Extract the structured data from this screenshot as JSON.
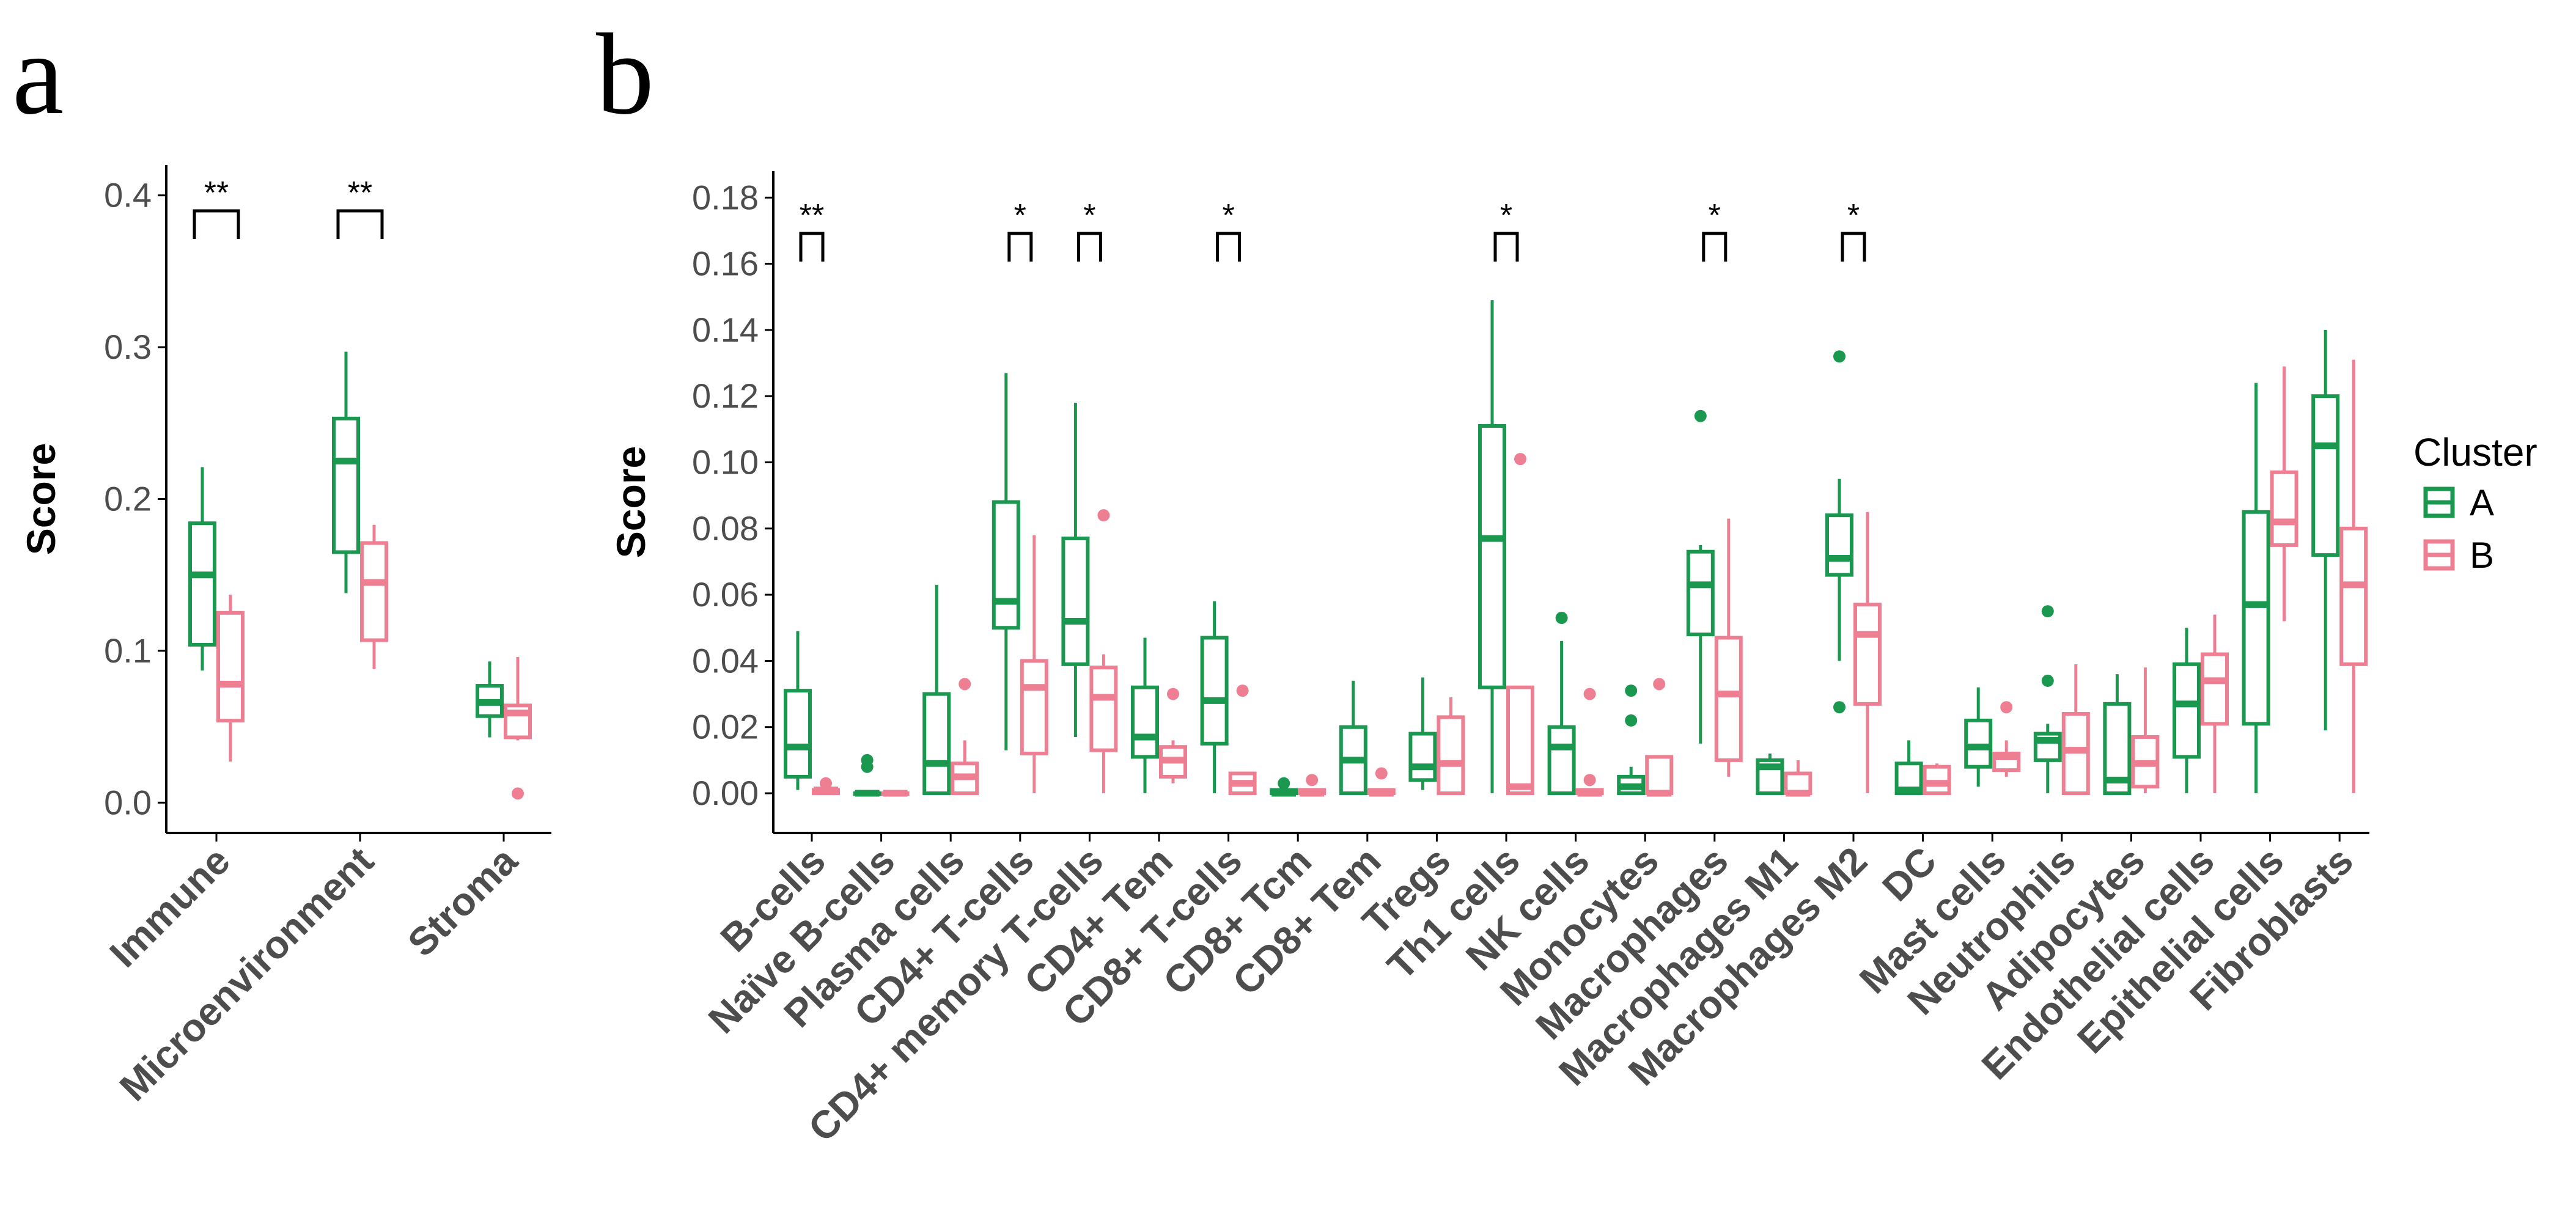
{
  "panel_labels": [
    "a",
    "b"
  ],
  "legend": {
    "title": "Cluster",
    "items": [
      {
        "label": "A",
        "color": "#1B9850"
      },
      {
        "label": "B",
        "color": "#EE7F93"
      }
    ]
  },
  "colors": {
    "A": "#1B9850",
    "B": "#EE7F93",
    "axis": "#000000",
    "tick_text": "#4d4d4d"
  },
  "chart_data": [
    {
      "type": "boxplot",
      "panel": "a",
      "ylabel": "Score",
      "xlabel": "",
      "ylim": [
        -0.02,
        0.42
      ],
      "yticks": [
        0.0,
        0.1,
        0.2,
        0.3,
        0.4
      ],
      "ytick_labels": [
        "0.0",
        "0.1",
        "0.2",
        "0.3",
        "0.4"
      ],
      "grid": false,
      "series_names": [
        "A",
        "B"
      ],
      "categories": [
        {
          "label": "Immune",
          "sig": "**",
          "A": {
            "whislo": 0.087,
            "q1": 0.104,
            "med": 0.15,
            "q3": 0.184,
            "whishi": 0.221,
            "outliers": []
          },
          "B": {
            "whislo": 0.027,
            "q1": 0.054,
            "med": 0.078,
            "q3": 0.125,
            "whishi": 0.137,
            "outliers": []
          }
        },
        {
          "label": "Microenvironment",
          "sig": "**",
          "A": {
            "whislo": 0.138,
            "q1": 0.165,
            "med": 0.225,
            "q3": 0.253,
            "whishi": 0.297,
            "outliers": []
          },
          "B": {
            "whislo": 0.088,
            "q1": 0.107,
            "med": 0.145,
            "q3": 0.171,
            "whishi": 0.183,
            "outliers": []
          }
        },
        {
          "label": "Stroma",
          "sig": "",
          "A": {
            "whislo": 0.043,
            "q1": 0.057,
            "med": 0.066,
            "q3": 0.077,
            "whishi": 0.093,
            "outliers": []
          },
          "B": {
            "whislo": 0.041,
            "q1": 0.043,
            "med": 0.059,
            "q3": 0.064,
            "whishi": 0.096,
            "outliers": [
              0.006
            ]
          }
        }
      ]
    },
    {
      "type": "boxplot",
      "panel": "b",
      "ylabel": "Score",
      "xlabel": "",
      "ylim": [
        -0.012,
        0.188
      ],
      "yticks": [
        0.0,
        0.02,
        0.04,
        0.06,
        0.08,
        0.1,
        0.12,
        0.14,
        0.16,
        0.18
      ],
      "ytick_labels": [
        "0.00",
        "0.02",
        "0.04",
        "0.06",
        "0.08",
        "0.10",
        "0.12",
        "0.14",
        "0.16",
        "0.18"
      ],
      "grid": false,
      "series_names": [
        "A",
        "B"
      ],
      "categories": [
        {
          "label": "B-cells",
          "sig": "**",
          "A": {
            "whislo": 0.001,
            "q1": 0.005,
            "med": 0.014,
            "q3": 0.031,
            "whishi": 0.049,
            "outliers": []
          },
          "B": {
            "whislo": 0.0,
            "q1": 0.0,
            "med": 0.001,
            "q3": 0.001,
            "whishi": 0.001,
            "outliers": [
              0.003
            ]
          }
        },
        {
          "label": "Naïve B-cells",
          "sig": "",
          "A": {
            "whislo": 0.0,
            "q1": 0.0,
            "med": 0.0,
            "q3": 0.0,
            "whishi": 0.0,
            "outliers": [
              0.008,
              0.01
            ]
          },
          "B": {
            "whislo": 0.0,
            "q1": 0.0,
            "med": 0.0,
            "q3": 0.0,
            "whishi": 0.0,
            "outliers": []
          }
        },
        {
          "label": "Plasma cells",
          "sig": "",
          "A": {
            "whislo": 0.0,
            "q1": 0.0,
            "med": 0.009,
            "q3": 0.03,
            "whishi": 0.063,
            "outliers": []
          },
          "B": {
            "whislo": 0.0,
            "q1": 0.0,
            "med": 0.005,
            "q3": 0.009,
            "whishi": 0.016,
            "outliers": [
              0.033
            ]
          }
        },
        {
          "label": "CD4+ T-cells",
          "sig": "*",
          "A": {
            "whislo": 0.013,
            "q1": 0.05,
            "med": 0.058,
            "q3": 0.088,
            "whishi": 0.127,
            "outliers": []
          },
          "B": {
            "whislo": 0.0,
            "q1": 0.012,
            "med": 0.032,
            "q3": 0.04,
            "whishi": 0.078,
            "outliers": []
          }
        },
        {
          "label": "CD4+ memory T-cells",
          "sig": "*",
          "A": {
            "whislo": 0.017,
            "q1": 0.039,
            "med": 0.052,
            "q3": 0.077,
            "whishi": 0.118,
            "outliers": []
          },
          "B": {
            "whislo": 0.0,
            "q1": 0.013,
            "med": 0.029,
            "q3": 0.038,
            "whishi": 0.042,
            "outliers": [
              0.084
            ]
          }
        },
        {
          "label": "CD4+ Tem",
          "sig": "",
          "A": {
            "whislo": 0.0,
            "q1": 0.011,
            "med": 0.017,
            "q3": 0.032,
            "whishi": 0.047,
            "outliers": []
          },
          "B": {
            "whislo": 0.003,
            "q1": 0.005,
            "med": 0.01,
            "q3": 0.014,
            "whishi": 0.016,
            "outliers": [
              0.03
            ]
          }
        },
        {
          "label": "CD8+ T-cells",
          "sig": "*",
          "A": {
            "whislo": 0.0,
            "q1": 0.015,
            "med": 0.028,
            "q3": 0.047,
            "whishi": 0.058,
            "outliers": []
          },
          "B": {
            "whislo": 0.0,
            "q1": 0.0,
            "med": 0.003,
            "q3": 0.006,
            "whishi": 0.006,
            "outliers": [
              0.031
            ]
          }
        },
        {
          "label": "CD8+ Tcm",
          "sig": "",
          "A": {
            "whislo": 0.0,
            "q1": 0.0,
            "med": 0.0,
            "q3": 0.001,
            "whishi": 0.001,
            "outliers": [
              0.003
            ]
          },
          "B": {
            "whislo": 0.0,
            "q1": 0.0,
            "med": 0.0,
            "q3": 0.001,
            "whishi": 0.001,
            "outliers": [
              0.004
            ]
          }
        },
        {
          "label": "CD8+ Tem",
          "sig": "",
          "A": {
            "whislo": 0.0,
            "q1": 0.0,
            "med": 0.01,
            "q3": 0.02,
            "whishi": 0.034,
            "outliers": []
          },
          "B": {
            "whislo": 0.0,
            "q1": 0.0,
            "med": 0.0,
            "q3": 0.001,
            "whishi": 0.001,
            "outliers": [
              0.006
            ]
          }
        },
        {
          "label": "Tregs",
          "sig": "",
          "A": {
            "whislo": 0.001,
            "q1": 0.004,
            "med": 0.008,
            "q3": 0.018,
            "whishi": 0.035,
            "outliers": []
          },
          "B": {
            "whislo": 0.0,
            "q1": 0.0,
            "med": 0.009,
            "q3": 0.023,
            "whishi": 0.029,
            "outliers": []
          }
        },
        {
          "label": "Th1 cells",
          "sig": "*",
          "A": {
            "whislo": 0.0,
            "q1": 0.032,
            "med": 0.077,
            "q3": 0.111,
            "whishi": 0.149,
            "outliers": []
          },
          "B": {
            "whislo": 0.0,
            "q1": 0.0,
            "med": 0.002,
            "q3": 0.032,
            "whishi": 0.032,
            "outliers": [
              0.101
            ]
          }
        },
        {
          "label": "NK cells",
          "sig": "",
          "A": {
            "whislo": 0.0,
            "q1": 0.0,
            "med": 0.014,
            "q3": 0.02,
            "whishi": 0.046,
            "outliers": [
              0.053
            ]
          },
          "B": {
            "whislo": 0.0,
            "q1": 0.0,
            "med": 0.0,
            "q3": 0.001,
            "whishi": 0.001,
            "outliers": [
              0.004,
              0.03
            ]
          }
        },
        {
          "label": "Monocytes",
          "sig": "",
          "A": {
            "whislo": 0.0,
            "q1": 0.0,
            "med": 0.002,
            "q3": 0.005,
            "whishi": 0.008,
            "outliers": [
              0.022,
              0.031
            ]
          },
          "B": {
            "whislo": 0.0,
            "q1": 0.0,
            "med": 0.0,
            "q3": 0.011,
            "whishi": 0.011,
            "outliers": [
              0.033
            ]
          }
        },
        {
          "label": "Macrophages",
          "sig": "*",
          "A": {
            "whislo": 0.015,
            "q1": 0.048,
            "med": 0.063,
            "q3": 0.073,
            "whishi": 0.075,
            "outliers": [
              0.114
            ]
          },
          "B": {
            "whislo": 0.005,
            "q1": 0.01,
            "med": 0.03,
            "q3": 0.047,
            "whishi": 0.083,
            "outliers": []
          }
        },
        {
          "label": "Macrophages M1",
          "sig": "",
          "A": {
            "whislo": 0.0,
            "q1": 0.0,
            "med": 0.008,
            "q3": 0.01,
            "whishi": 0.012,
            "outliers": []
          },
          "B": {
            "whislo": 0.0,
            "q1": 0.0,
            "med": 0.0,
            "q3": 0.006,
            "whishi": 0.01,
            "outliers": []
          }
        },
        {
          "label": "Macrophages M2",
          "sig": "*",
          "A": {
            "whislo": 0.04,
            "q1": 0.066,
            "med": 0.071,
            "q3": 0.084,
            "whishi": 0.095,
            "outliers": [
              0.026,
              0.132
            ]
          },
          "B": {
            "whislo": 0.0,
            "q1": 0.027,
            "med": 0.048,
            "q3": 0.057,
            "whishi": 0.085,
            "outliers": []
          }
        },
        {
          "label": "DC",
          "sig": "",
          "A": {
            "whislo": 0.0,
            "q1": 0.0,
            "med": 0.001,
            "q3": 0.009,
            "whishi": 0.016,
            "outliers": []
          },
          "B": {
            "whislo": 0.0,
            "q1": 0.0,
            "med": 0.003,
            "q3": 0.008,
            "whishi": 0.009,
            "outliers": []
          }
        },
        {
          "label": "Mast cells",
          "sig": "",
          "A": {
            "whislo": 0.002,
            "q1": 0.008,
            "med": 0.014,
            "q3": 0.022,
            "whishi": 0.032,
            "outliers": []
          },
          "B": {
            "whislo": 0.005,
            "q1": 0.007,
            "med": 0.011,
            "q3": 0.012,
            "whishi": 0.016,
            "outliers": [
              0.026
            ]
          }
        },
        {
          "label": "Neutrophils",
          "sig": "",
          "A": {
            "whislo": 0.0,
            "q1": 0.01,
            "med": 0.016,
            "q3": 0.018,
            "whishi": 0.021,
            "outliers": [
              0.034,
              0.055
            ]
          },
          "B": {
            "whislo": 0.0,
            "q1": 0.0,
            "med": 0.013,
            "q3": 0.024,
            "whishi": 0.039,
            "outliers": []
          }
        },
        {
          "label": "Adipocytes",
          "sig": "",
          "A": {
            "whislo": 0.0,
            "q1": 0.0,
            "med": 0.004,
            "q3": 0.027,
            "whishi": 0.036,
            "outliers": []
          },
          "B": {
            "whislo": 0.0,
            "q1": 0.002,
            "med": 0.009,
            "q3": 0.017,
            "whishi": 0.038,
            "outliers": []
          }
        },
        {
          "label": "Endothelial cells",
          "sig": "",
          "A": {
            "whislo": 0.0,
            "q1": 0.011,
            "med": 0.027,
            "q3": 0.039,
            "whishi": 0.05,
            "outliers": []
          },
          "B": {
            "whislo": 0.0,
            "q1": 0.021,
            "med": 0.034,
            "q3": 0.042,
            "whishi": 0.054,
            "outliers": []
          }
        },
        {
          "label": "Epithelial cells",
          "sig": "",
          "A": {
            "whislo": 0.0,
            "q1": 0.021,
            "med": 0.057,
            "q3": 0.085,
            "whishi": 0.124,
            "outliers": []
          },
          "B": {
            "whislo": 0.052,
            "q1": 0.075,
            "med": 0.082,
            "q3": 0.097,
            "whishi": 0.129,
            "outliers": []
          }
        },
        {
          "label": "Fibroblasts",
          "sig": "",
          "A": {
            "whislo": 0.019,
            "q1": 0.072,
            "med": 0.105,
            "q3": 0.12,
            "whishi": 0.14,
            "outliers": []
          },
          "B": {
            "whislo": 0.0,
            "q1": 0.039,
            "med": 0.063,
            "q3": 0.08,
            "whishi": 0.131,
            "outliers": []
          }
        }
      ]
    }
  ]
}
